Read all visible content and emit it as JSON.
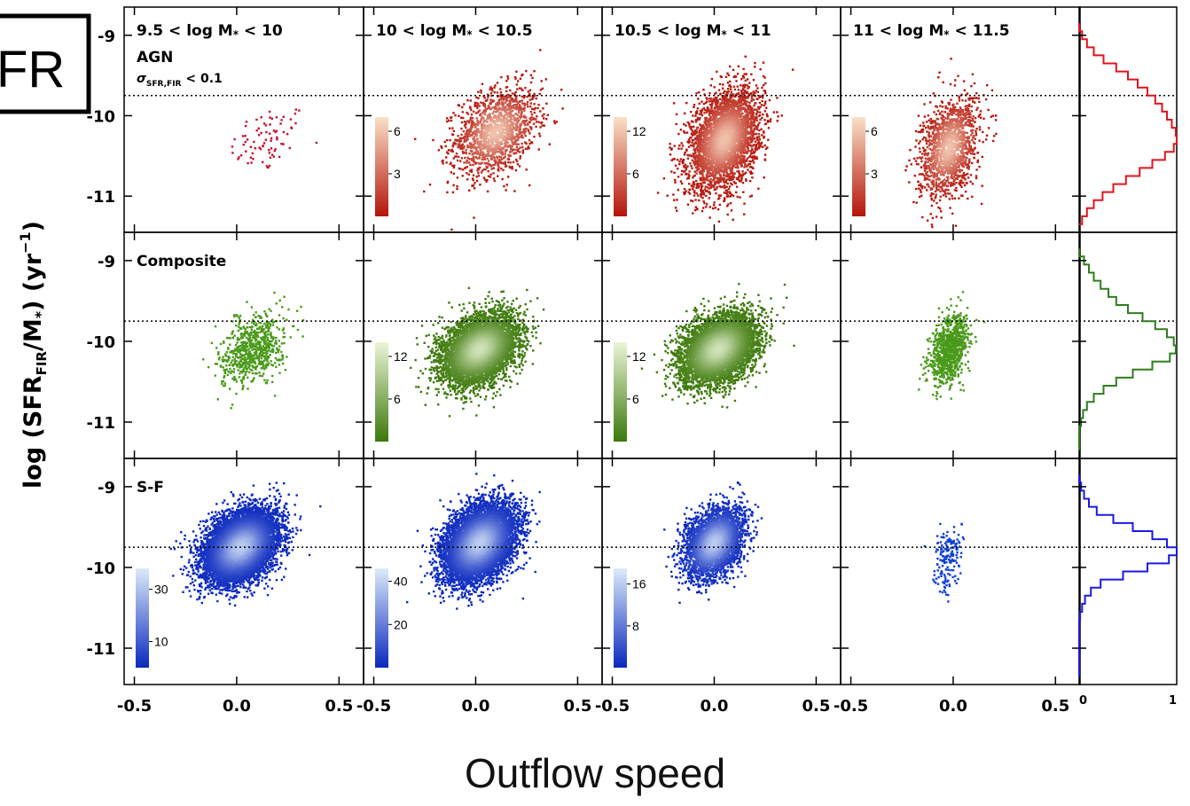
{
  "figure": {
    "ylabel": "log (SFR",
    "ylabel_sub": "FIR",
    "ylabel_mid": "/M",
    "ylabel_star": "*",
    "ylabel_tail": ") (yr",
    "ylabel_sup": "−1",
    "ylabel_end": ")",
    "corner_label": "FR",
    "caption": "Outflow speed"
  },
  "chart_data": {
    "type": "scatter",
    "xlim": [
      -0.55,
      0.62
    ],
    "ylim": [
      -11.45,
      -8.65
    ],
    "x_ticks": [
      "-0.5",
      "0.0",
      "0.5"
    ],
    "y_ticks": [
      "-9",
      "-10",
      "-11"
    ],
    "y_tick_values": [
      -9,
      -10,
      -11
    ],
    "x_tick_values": [
      -0.5,
      0.0,
      0.5
    ],
    "reference_line_y": -9.75,
    "grid": false,
    "columns": [
      {
        "label": "9.5 < log M",
        "label_sub": "*",
        "label_tail": " < 10"
      },
      {
        "label": "10 < log M",
        "label_sub": "*",
        "label_tail": " < 10.5"
      },
      {
        "label": "10.5 < log M",
        "label_sub": "*",
        "label_tail": " < 11"
      },
      {
        "label": "11 < log M",
        "label_sub": "*",
        "label_tail": " < 11.5"
      }
    ],
    "rows": [
      {
        "label": "AGN",
        "note": "σ",
        "note_sub": "SFR,FIR",
        "note_tail": " < 0.1",
        "color": "#c8102e",
        "hist_color": "#e0141e",
        "panels": [
          {
            "cx": 0.15,
            "cy": -10.3,
            "sx": 0.18,
            "sy": 0.35,
            "n": 80,
            "colorbar": null
          },
          {
            "cx": 0.1,
            "cy": -10.2,
            "sx": 0.2,
            "sy": 0.45,
            "n": 1500,
            "colorbar": {
              "ticks": [
                "6",
                "3"
              ],
              "tick_values": [
                6,
                3
              ],
              "max": 7,
              "scheme": "hot"
            }
          },
          {
            "cx": 0.05,
            "cy": -10.3,
            "sx": 0.17,
            "sy": 0.5,
            "n": 3500,
            "colorbar": {
              "ticks": [
                "12",
                "6"
              ],
              "tick_values": [
                12,
                6
              ],
              "max": 14,
              "scheme": "hot"
            }
          },
          {
            "cx": -0.02,
            "cy": -10.4,
            "sx": 0.14,
            "sy": 0.5,
            "n": 1500,
            "colorbar": {
              "ticks": [
                "6",
                "3"
              ],
              "tick_values": [
                6,
                3
              ],
              "max": 7,
              "scheme": "hot"
            }
          }
        ],
        "histogram": {
          "y_centers": [
            -8.9,
            -9.0,
            -9.1,
            -9.2,
            -9.3,
            -9.4,
            -9.5,
            -9.6,
            -9.7,
            -9.8,
            -9.9,
            -10.0,
            -10.1,
            -10.2,
            -10.3,
            -10.4,
            -10.5,
            -10.6,
            -10.7,
            -10.8,
            -10.9,
            -11.0,
            -11.1,
            -11.2,
            -11.3
          ],
          "values": [
            0.0,
            0.03,
            0.08,
            0.15,
            0.25,
            0.38,
            0.5,
            0.6,
            0.7,
            0.78,
            0.85,
            0.9,
            0.95,
            0.99,
            1.0,
            0.97,
            0.88,
            0.75,
            0.62,
            0.48,
            0.35,
            0.24,
            0.15,
            0.08,
            0.03
          ]
        }
      },
      {
        "label": "Composite",
        "color": "#4a9a1a",
        "hist_color": "#2e7d1e",
        "panels": [
          {
            "cx": 0.08,
            "cy": -10.1,
            "sx": 0.15,
            "sy": 0.35,
            "n": 700,
            "colorbar": null
          },
          {
            "cx": 0.02,
            "cy": -10.1,
            "sx": 0.18,
            "sy": 0.35,
            "n": 6000,
            "colorbar": {
              "ticks": [
                "12",
                "6"
              ],
              "tick_values": [
                12,
                6
              ],
              "max": 14,
              "scheme": "green"
            }
          },
          {
            "cx": 0.02,
            "cy": -10.1,
            "sx": 0.18,
            "sy": 0.35,
            "n": 6000,
            "colorbar": {
              "ticks": [
                "12",
                "6"
              ],
              "tick_values": [
                12,
                6
              ],
              "max": 14,
              "scheme": "green"
            }
          },
          {
            "cx": -0.02,
            "cy": -10.1,
            "sx": 0.09,
            "sy": 0.35,
            "n": 900,
            "colorbar": null
          }
        ],
        "histogram": {
          "y_centers": [
            -8.9,
            -9.0,
            -9.1,
            -9.2,
            -9.3,
            -9.4,
            -9.5,
            -9.6,
            -9.7,
            -9.8,
            -9.9,
            -10.0,
            -10.1,
            -10.2,
            -10.3,
            -10.4,
            -10.5,
            -10.6,
            -10.7,
            -10.8,
            -10.9,
            -11.0,
            -11.1,
            -11.2,
            -11.3
          ],
          "values": [
            0.0,
            0.05,
            0.1,
            0.15,
            0.22,
            0.3,
            0.38,
            0.5,
            0.65,
            0.78,
            0.9,
            0.97,
            0.99,
            0.93,
            0.75,
            0.55,
            0.38,
            0.25,
            0.15,
            0.08,
            0.04,
            0.02,
            0.0,
            0.0,
            0.0
          ]
        }
      },
      {
        "label": "S-F",
        "color": "#1040d8",
        "hist_color": "#1a1ae0",
        "panels": [
          {
            "cx": 0.02,
            "cy": -9.75,
            "sx": 0.17,
            "sy": 0.35,
            "n": 9000,
            "colorbar": {
              "ticks": [
                "30",
                "10"
              ],
              "tick_values": [
                30,
                10
              ],
              "max": 38,
              "scheme": "blue"
            }
          },
          {
            "cx": 0.02,
            "cy": -9.7,
            "sx": 0.17,
            "sy": 0.38,
            "n": 8000,
            "colorbar": {
              "ticks": [
                "40",
                "20"
              ],
              "tick_values": [
                40,
                20
              ],
              "max": 46,
              "scheme": "blue"
            }
          },
          {
            "cx": 0.0,
            "cy": -9.7,
            "sx": 0.14,
            "sy": 0.35,
            "n": 3500,
            "colorbar": {
              "ticks": [
                "16",
                "8"
              ],
              "tick_values": [
                16,
                8
              ],
              "max": 19,
              "scheme": "blue"
            }
          },
          {
            "cx": -0.03,
            "cy": -9.9,
            "sx": 0.07,
            "sy": 0.35,
            "n": 170,
            "colorbar": null
          }
        ],
        "histogram": {
          "y_centers": [
            -8.9,
            -9.0,
            -9.1,
            -9.2,
            -9.3,
            -9.4,
            -9.5,
            -9.6,
            -9.7,
            -9.8,
            -9.9,
            -10.0,
            -10.1,
            -10.2,
            -10.3,
            -10.4,
            -10.5,
            -10.6,
            -10.7,
            -10.8,
            -10.9,
            -11.0,
            -11.1,
            -11.2,
            -11.3
          ],
          "values": [
            0.0,
            0.02,
            0.05,
            0.1,
            0.18,
            0.35,
            0.55,
            0.75,
            0.9,
            1.0,
            0.92,
            0.7,
            0.45,
            0.22,
            0.12,
            0.06,
            0.03,
            0.01,
            0.0,
            0.0,
            0.0,
            0.0,
            0.0,
            0.0,
            0.0
          ]
        }
      }
    ],
    "hist_x_ticks": [
      "0",
      "1"
    ]
  }
}
